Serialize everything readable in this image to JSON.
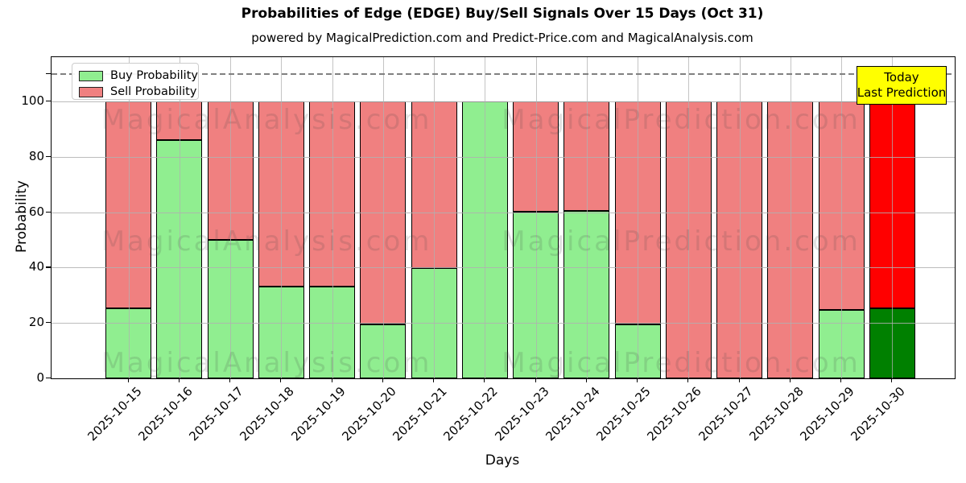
{
  "figure": {
    "title": "Probabilities of Edge (EDGE) Buy/Sell Signals Over 15 Days (Oct 31)",
    "subtitle": "powered by MagicalPrediction.com and Predict-Price.com and MagicalAnalysis.com"
  },
  "chart_data": {
    "type": "bar",
    "stacked": true,
    "title": "Probabilities of Edge (EDGE) Buy/Sell Signals Over 15 Days (Oct 31)",
    "subtitle": "powered by MagicalPrediction.com and Predict-Price.com and MagicalAnalysis.com",
    "xlabel": "Days",
    "ylabel": "Probability",
    "categories": [
      "2025-10-15",
      "2025-10-16",
      "2025-10-17",
      "2025-10-18",
      "2025-10-19",
      "2025-10-20",
      "2025-10-21",
      "2025-10-22",
      "2025-10-23",
      "2025-10-24",
      "2025-10-25",
      "2025-10-26",
      "2025-10-27",
      "2025-10-28",
      "2025-10-29",
      "2025-10-30"
    ],
    "series": [
      {
        "name": "Buy Probability",
        "color": "#90EE90",
        "values": [
          25.3,
          86,
          50,
          33,
          33,
          19.6,
          39.7,
          100,
          60.3,
          60.6,
          19.6,
          0,
          0,
          0,
          24.7,
          25.3
        ]
      },
      {
        "name": "Sell Probability",
        "color": "#F08080",
        "values": [
          74.7,
          14,
          50,
          67,
          67,
          80.4,
          60.3,
          0,
          39.7,
          39.4,
          80.4,
          100,
          100,
          100,
          75.3,
          74.7
        ]
      }
    ],
    "last_bar_highlight": {
      "buy_color": "#008000",
      "sell_color": "#FF0000"
    },
    "bar_edge_color": "#000000",
    "ylim": [
      0,
      116
    ],
    "yticks": [
      0,
      20,
      40,
      60,
      80,
      100
    ],
    "dashed_line_y": 110,
    "dashed_line_color": "#808080",
    "grid": true,
    "grid_color": "#b0b0b0",
    "legend": {
      "position": "upper left",
      "items": [
        {
          "label": "Buy Probability",
          "color": "#90EE90"
        },
        {
          "label": "Sell Probability",
          "color": "#F08080"
        }
      ]
    },
    "annotation": {
      "lines": [
        "Today",
        "Last Prediction"
      ],
      "bg_color": "#FFFF00"
    },
    "watermarks": {
      "texts": [
        "MagicalAnalysis.com",
        "MagicalPrediction.com"
      ],
      "col_centers_frac": [
        0.238,
        0.697
      ],
      "row_centers_frac": [
        0.195,
        0.573,
        0.952
      ]
    }
  }
}
